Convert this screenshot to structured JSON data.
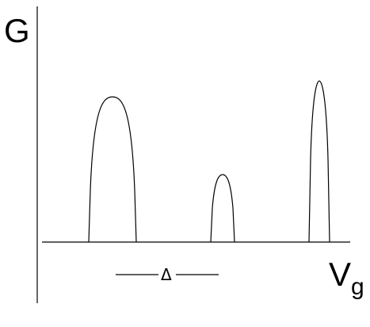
{
  "labels": {
    "y_axis": "G",
    "x_axis_main": "V",
    "x_axis_subscript": "g",
    "spacing_symbol": "Δ"
  },
  "colors": {
    "stroke": "#000000",
    "background": "#ffffff"
  }
}
